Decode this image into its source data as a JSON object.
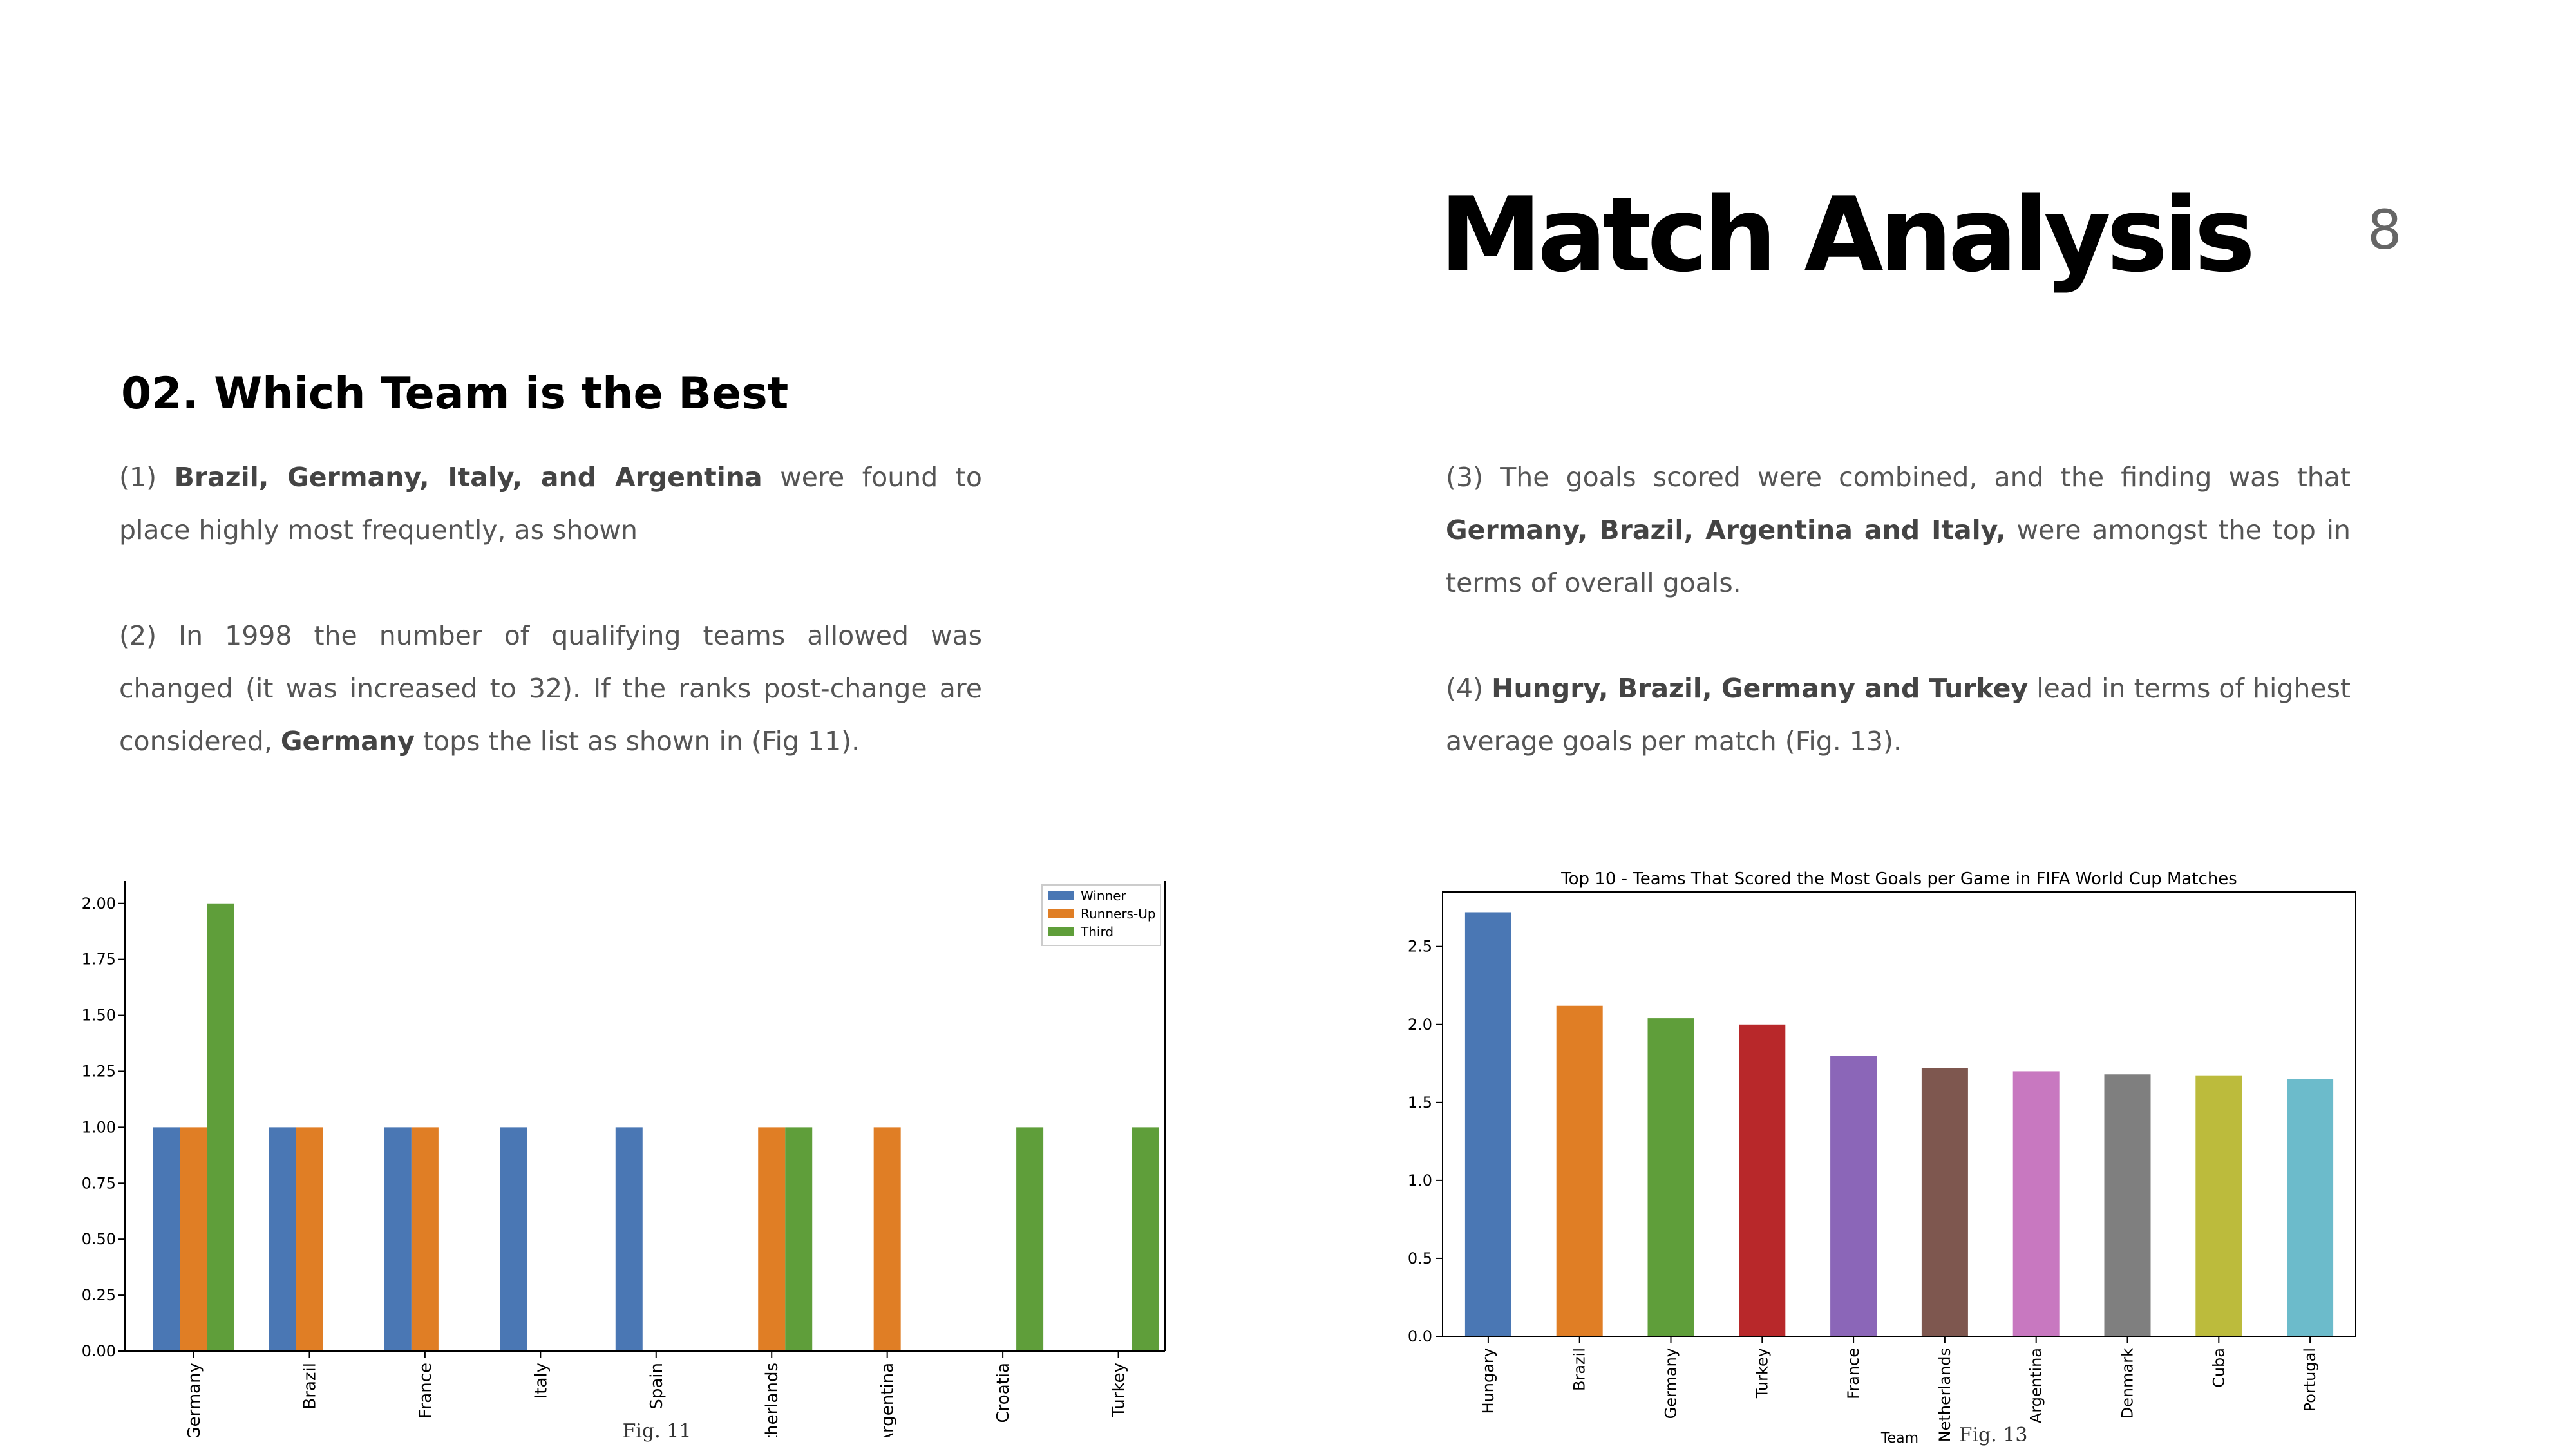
{
  "slide": {
    "title": "Match Analysis",
    "page_number": "8",
    "section_heading": "02. Which Team is the Best",
    "left_paragraphs": [
      {
        "prefix": "(1) ",
        "bold": "Brazil, Germany, Italy, and Argentina",
        "suffix": " were found to place highly most frequently, as shown"
      },
      {
        "prefix": "(2) In 1998 the number of qualifying teams allowed was changed (it was increased to 32). If the ranks post-change are considered, ",
        "bold": "Germany",
        "suffix": " tops the list as shown in (Fig 11)."
      }
    ],
    "right_paragraphs": [
      {
        "prefix": "(3) The goals scored were combined, and the finding was that ",
        "bold": "Germany, Brazil, Argentina and Italy,",
        "suffix": " were amongst the top in terms of overall goals."
      },
      {
        "prefix": "(4) ",
        "bold": "Hungry, Brazil, Germany and Turkey",
        "suffix": " lead in terms of highest average goals per match (Fig. 13)."
      }
    ]
  },
  "chart_data": [
    {
      "type": "bar",
      "title": "",
      "xlabel": "",
      "ylabel": "",
      "figure_label": "Fig. 11",
      "categories": [
        "Germany",
        "Brazil",
        "France",
        "Italy",
        "Spain",
        "Netherlands",
        "Argentina",
        "Croatia",
        "Turkey"
      ],
      "series": [
        {
          "name": "Winner",
          "color": "#4a77b4",
          "values": [
            1,
            1,
            1,
            1,
            1,
            0,
            0,
            0,
            0
          ]
        },
        {
          "name": "Runners-Up",
          "color": "#e07e25",
          "values": [
            1,
            1,
            1,
            0,
            0,
            1,
            1,
            0,
            0
          ]
        },
        {
          "name": "Third",
          "color": "#5f9e3a",
          "values": [
            2,
            0,
            0,
            0,
            0,
            1,
            0,
            1,
            1
          ]
        }
      ],
      "ylim": [
        0,
        2.1
      ],
      "yticks": [
        "0.00",
        "0.25",
        "0.50",
        "0.75",
        "1.00",
        "1.25",
        "1.50",
        "1.75",
        "2.00"
      ],
      "legend_position": "top-right",
      "grid": false
    },
    {
      "type": "bar",
      "title": "Top 10 - Teams That Scored the Most Goals per Game in FIFA World Cup Matches",
      "xlabel": "Team",
      "ylabel": "",
      "figure_label": "Fig. 13",
      "categories": [
        "Hungary",
        "Brazil",
        "Germany",
        "Turkey",
        "France",
        "Netherlands",
        "Argentina",
        "Denmark",
        "Cuba",
        "Portugal"
      ],
      "values": [
        2.72,
        2.12,
        2.04,
        2.0,
        1.8,
        1.72,
        1.7,
        1.68,
        1.67,
        1.65
      ],
      "colors": [
        "#4a77b4",
        "#e07e25",
        "#5f9e3a",
        "#b8282a",
        "#8b66b8",
        "#7e574f",
        "#c878c0",
        "#7f7f7f",
        "#bcbb3c",
        "#6cbbcb"
      ],
      "ylim": [
        0,
        2.85
      ],
      "yticks": [
        "0.0",
        "0.5",
        "1.0",
        "1.5",
        "2.0",
        "2.5"
      ],
      "grid": false
    }
  ]
}
